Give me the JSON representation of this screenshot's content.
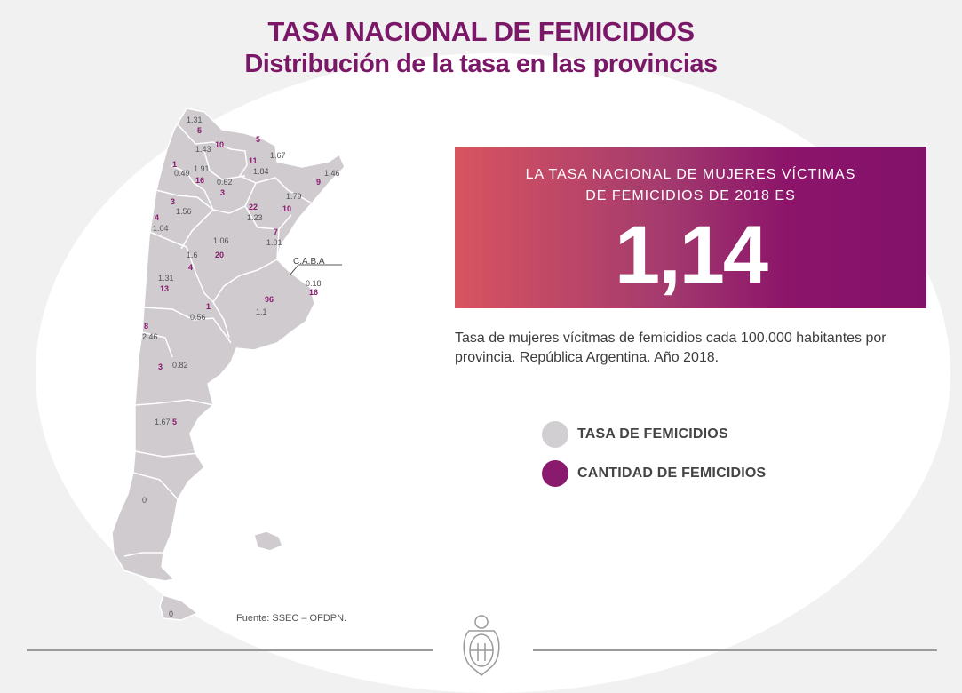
{
  "title": "TASA NACIONAL DE FEMICIDIOS",
  "subtitle": "Distribución de la tasa en las provincias",
  "national_rate": {
    "text_line1": "LA TASA NACIONAL DE MUJERES VÍCTIMAS",
    "text_line2": "DE FEMICIDIOS DE 2018 ES",
    "value": "1,14"
  },
  "description": "Tasa de mujeres vícitmas de femicidios cada 100.000 habitantes por provincia. República Argentina. Año 2018.",
  "legend": {
    "rate_label": "TASA DE FEMICIDIOS",
    "count_label": "CANTIDAD DE FEMICIDIOS"
  },
  "colors": {
    "rate": "#cfcbcf",
    "count": "#8a1a6e",
    "title": "#7a1766"
  },
  "source": "Fuente: SSEC – OFDPN.",
  "map": {
    "caba_label": "C.A.B.A",
    "labels": [
      {
        "kind": "rate",
        "text": "1.31"
      },
      {
        "kind": "count",
        "text": "5"
      },
      {
        "kind": "rate",
        "text": "1.43"
      },
      {
        "kind": "count",
        "text": "10"
      },
      {
        "kind": "count",
        "text": "5"
      },
      {
        "kind": "rate",
        "text": "1.67"
      },
      {
        "kind": "count",
        "text": "11"
      },
      {
        "kind": "rate",
        "text": "1.84"
      },
      {
        "kind": "count",
        "text": "1"
      },
      {
        "kind": "rate",
        "text": "0.49"
      },
      {
        "kind": "rate",
        "text": "1.91"
      },
      {
        "kind": "count",
        "text": "16"
      },
      {
        "kind": "rate",
        "text": "0.62"
      },
      {
        "kind": "count",
        "text": "3"
      },
      {
        "kind": "rate",
        "text": "1.46"
      },
      {
        "kind": "count",
        "text": "9"
      },
      {
        "kind": "count",
        "text": "3"
      },
      {
        "kind": "rate",
        "text": "1.56"
      },
      {
        "kind": "count",
        "text": "22"
      },
      {
        "kind": "rate",
        "text": "1.23"
      },
      {
        "kind": "rate",
        "text": "1.79"
      },
      {
        "kind": "count",
        "text": "10"
      },
      {
        "kind": "count",
        "text": "4"
      },
      {
        "kind": "rate",
        "text": "1.04"
      },
      {
        "kind": "count",
        "text": "7"
      },
      {
        "kind": "rate",
        "text": "1.01"
      },
      {
        "kind": "rate",
        "text": "1.06"
      },
      {
        "kind": "count",
        "text": "20"
      },
      {
        "kind": "rate",
        "text": "1.6"
      },
      {
        "kind": "count",
        "text": "4"
      },
      {
        "kind": "rate",
        "text": "0.18"
      },
      {
        "kind": "count",
        "text": "16"
      },
      {
        "kind": "rate",
        "text": "1.31"
      },
      {
        "kind": "count",
        "text": "13"
      },
      {
        "kind": "count",
        "text": "96"
      },
      {
        "kind": "rate",
        "text": "1.1"
      },
      {
        "kind": "count",
        "text": "1"
      },
      {
        "kind": "rate",
        "text": "0.56"
      },
      {
        "kind": "count",
        "text": "8"
      },
      {
        "kind": "rate",
        "text": "2.46"
      },
      {
        "kind": "count",
        "text": "3"
      },
      {
        "kind": "rate",
        "text": "0.82"
      },
      {
        "kind": "rate",
        "text": "1.67"
      },
      {
        "kind": "count",
        "text": "5"
      },
      {
        "kind": "rate",
        "text": "0"
      },
      {
        "kind": "rate",
        "text": "0"
      }
    ]
  }
}
